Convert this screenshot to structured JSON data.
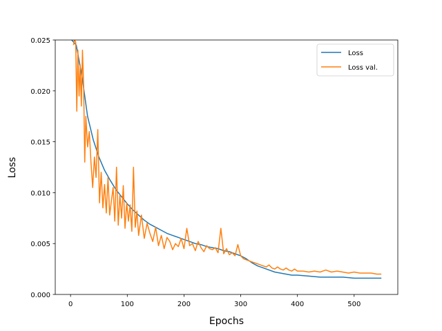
{
  "chart_data": {
    "type": "line",
    "title": "",
    "xlabel": "Epochs",
    "ylabel": "Loss",
    "xlim": [
      -27,
      577
    ],
    "ylim": [
      0.0,
      0.025
    ],
    "xticks": [
      0,
      100,
      200,
      300,
      400,
      500
    ],
    "yticks": [
      0.0,
      0.005,
      0.01,
      0.015,
      0.02,
      0.025
    ],
    "xtick_labels": [
      "0",
      "100",
      "200",
      "300",
      "400",
      "500"
    ],
    "ytick_labels": [
      "0.000",
      "0.005",
      "0.010",
      "0.015",
      "0.020",
      "0.025"
    ],
    "grid": false,
    "legend_position": "top-right",
    "series": [
      {
        "name": "Loss",
        "color": "#1f77b4",
        "x": [
          2,
          10,
          20,
          30,
          40,
          50,
          60,
          70,
          80,
          90,
          100,
          110,
          120,
          130,
          140,
          150,
          160,
          170,
          180,
          190,
          200,
          210,
          220,
          230,
          240,
          250,
          260,
          270,
          280,
          290,
          300,
          310,
          320,
          330,
          340,
          350,
          360,
          370,
          380,
          390,
          400,
          420,
          440,
          460,
          480,
          500,
          520,
          540,
          548
        ],
        "values": [
          0.025,
          0.0245,
          0.0215,
          0.0175,
          0.0152,
          0.0135,
          0.0122,
          0.0112,
          0.0103,
          0.0096,
          0.0089,
          0.0083,
          0.0078,
          0.0073,
          0.0069,
          0.0066,
          0.0063,
          0.006,
          0.0058,
          0.0056,
          0.0054,
          0.0052,
          0.005,
          0.0049,
          0.0047,
          0.0046,
          0.0045,
          0.0043,
          0.0042,
          0.004,
          0.0038,
          0.0035,
          0.0031,
          0.0028,
          0.0026,
          0.0024,
          0.0022,
          0.0021,
          0.002,
          0.0019,
          0.0019,
          0.0018,
          0.0017,
          0.0017,
          0.0017,
          0.0016,
          0.0016,
          0.0016,
          0.0016
        ]
      },
      {
        "name": "Loss val.",
        "color": "#ff7f0e",
        "x": [
          5,
          7,
          9,
          11,
          13,
          15,
          17,
          19,
          21,
          23,
          25,
          27,
          30,
          33,
          36,
          39,
          42,
          45,
          48,
          51,
          54,
          57,
          60,
          63,
          66,
          69,
          72,
          75,
          78,
          81,
          84,
          87,
          90,
          93,
          96,
          99,
          102,
          105,
          108,
          111,
          114,
          117,
          120,
          125,
          130,
          135,
          140,
          145,
          150,
          155,
          160,
          165,
          170,
          175,
          180,
          185,
          190,
          195,
          200,
          205,
          210,
          215,
          220,
          225,
          230,
          235,
          240,
          245,
          250,
          255,
          260,
          265,
          270,
          275,
          280,
          285,
          290,
          295,
          300,
          305,
          310,
          315,
          320,
          325,
          330,
          335,
          340,
          345,
          350,
          355,
          360,
          365,
          370,
          375,
          380,
          385,
          390,
          395,
          400,
          410,
          420,
          430,
          440,
          450,
          460,
          470,
          480,
          490,
          500,
          510,
          520,
          530,
          540,
          548
        ],
        "values": [
          0.0245,
          0.025,
          0.0248,
          0.018,
          0.024,
          0.0195,
          0.0225,
          0.0185,
          0.024,
          0.0205,
          0.013,
          0.0175,
          0.0145,
          0.016,
          0.013,
          0.0105,
          0.0135,
          0.0115,
          0.0162,
          0.009,
          0.012,
          0.0085,
          0.0108,
          0.008,
          0.0115,
          0.0078,
          0.0092,
          0.0105,
          0.0072,
          0.0125,
          0.0068,
          0.0098,
          0.0075,
          0.0107,
          0.0065,
          0.009,
          0.0072,
          0.0088,
          0.0062,
          0.0125,
          0.0066,
          0.0082,
          0.0058,
          0.0078,
          0.0055,
          0.007,
          0.006,
          0.0052,
          0.0066,
          0.0048,
          0.0058,
          0.0045,
          0.0056,
          0.0052,
          0.0044,
          0.005,
          0.0047,
          0.0055,
          0.0045,
          0.0065,
          0.0048,
          0.005,
          0.0043,
          0.0052,
          0.0046,
          0.0042,
          0.0048,
          0.0045,
          0.0044,
          0.0046,
          0.0041,
          0.0065,
          0.004,
          0.0045,
          0.0039,
          0.0041,
          0.0038,
          0.0049,
          0.0038,
          0.0035,
          0.0034,
          0.0033,
          0.0032,
          0.0031,
          0.003,
          0.0029,
          0.0028,
          0.0027,
          0.0029,
          0.0026,
          0.0025,
          0.0027,
          0.0025,
          0.0024,
          0.0026,
          0.0024,
          0.0023,
          0.0025,
          0.0023,
          0.0023,
          0.0022,
          0.0023,
          0.0022,
          0.0024,
          0.0022,
          0.0023,
          0.0022,
          0.0021,
          0.0022,
          0.0021,
          0.0021,
          0.0021,
          0.002,
          0.002
        ]
      }
    ]
  }
}
